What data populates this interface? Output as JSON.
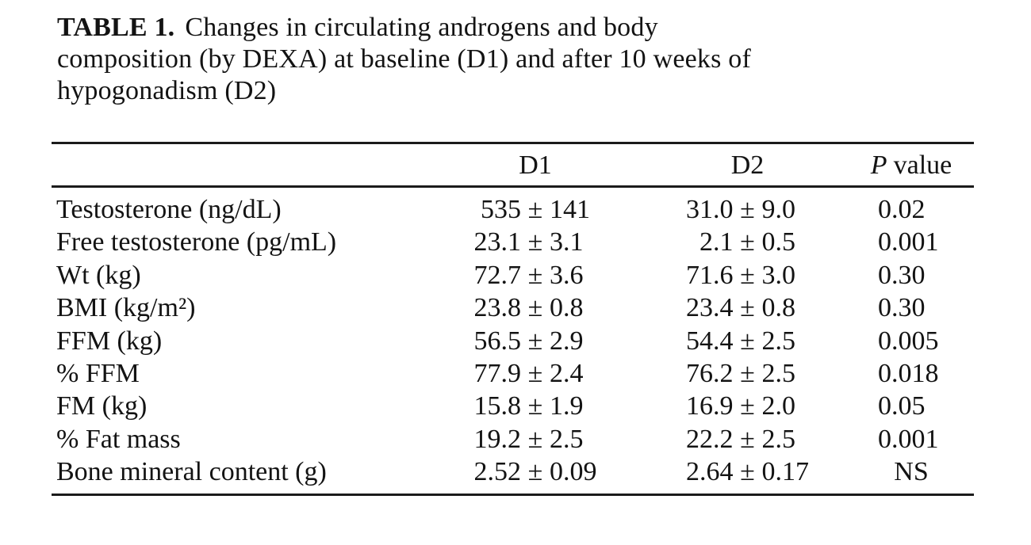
{
  "page": {
    "background_color": "#ffffff",
    "text_color": "#131313",
    "rule_color": "#1b1b1b"
  },
  "title": {
    "label": "TABLE 1.",
    "lines": [
      "Changes in circulating androgens and body",
      "composition (by DEXA) at baseline (D1) and after 10 weeks of",
      "hypogonadism (D2)"
    ]
  },
  "table": {
    "pm_symbol": "±",
    "header": {
      "d1": "D1",
      "d2": "D2",
      "p_italic": "P",
      "p_rest": "value"
    },
    "rows": [
      {
        "label": "Testosterone (ng/dL)",
        "d1_mean": "535",
        "d1_sd": "141",
        "d2_mean": "31.0",
        "d2_sd": "9.0",
        "p": "0.02"
      },
      {
        "label": "Free testosterone (pg/mL)",
        "d1_mean": "23.1",
        "d1_sd": "3.1",
        "d2_mean": "2.1",
        "d2_sd": "0.5",
        "p": "0.001"
      },
      {
        "label": "Wt (kg)",
        "d1_mean": "72.7",
        "d1_sd": "3.6",
        "d2_mean": "71.6",
        "d2_sd": "3.0",
        "p": "0.30"
      },
      {
        "label": "BMI (kg/m²)",
        "d1_mean": "23.8",
        "d1_sd": "0.8",
        "d2_mean": "23.4",
        "d2_sd": "0.8",
        "p": "0.30"
      },
      {
        "label": "FFM (kg)",
        "d1_mean": "56.5",
        "d1_sd": "2.9",
        "d2_mean": "54.4",
        "d2_sd": "2.5",
        "p": "0.005"
      },
      {
        "label": "% FFM",
        "d1_mean": "77.9",
        "d1_sd": "2.4",
        "d2_mean": "76.2",
        "d2_sd": "2.5",
        "p": "0.018"
      },
      {
        "label": "FM (kg)",
        "d1_mean": "15.8",
        "d1_sd": "1.9",
        "d2_mean": "16.9",
        "d2_sd": "2.0",
        "p": "0.05"
      },
      {
        "label": "% Fat mass",
        "d1_mean": "19.2",
        "d1_sd": "2.5",
        "d2_mean": "22.2",
        "d2_sd": "2.5",
        "p": "0.001"
      },
      {
        "label": "Bone mineral content (g)",
        "d1_mean": "2.52",
        "d1_sd": "0.09",
        "d2_mean": "2.64",
        "d2_sd": "0.17",
        "p": "NS"
      }
    ]
  }
}
